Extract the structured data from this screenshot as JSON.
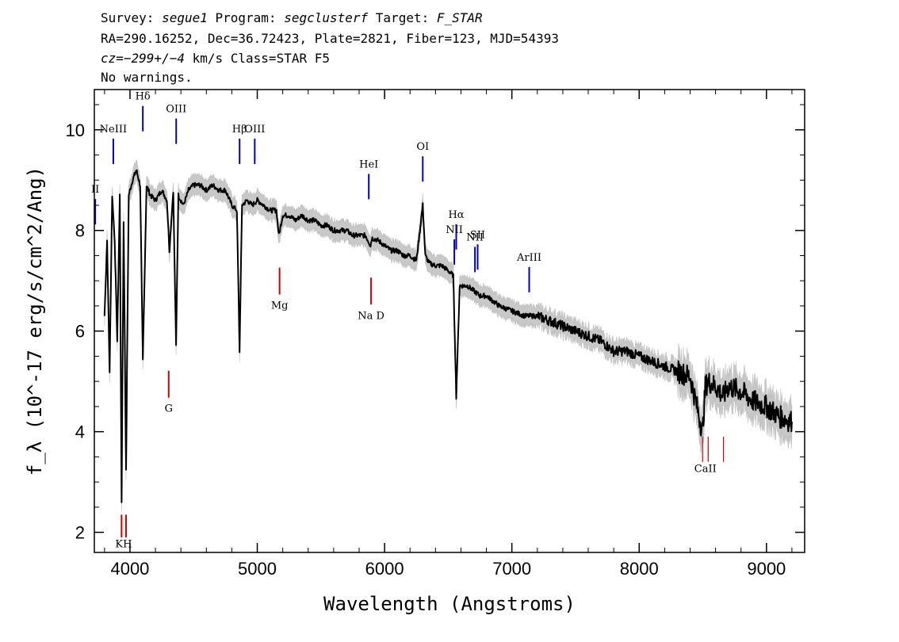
{
  "header": {
    "survey_label": "Survey: ",
    "survey_value": "segue1",
    "program_label": " Program: ",
    "program_value": "segclusterf",
    "target_label": " Target: ",
    "target_value": "F_STAR",
    "line2": "RA=290.16252, Dec=36.72423, Plate=2821, Fiber=123, MJD=54393",
    "cz_value": "cz=−299+/−4",
    "cz_rest": " km/s Class=STAR F5",
    "line4": "No warnings."
  },
  "chart_data": {
    "type": "line",
    "title": "",
    "xlabel": "Wavelength (Angstroms)",
    "ylabel": "f_λ (10^-17 erg/s/cm^2/Ang)",
    "xlim": [
      3720,
      9300
    ],
    "ylim": [
      1.6,
      10.8
    ],
    "xticks": [
      4000,
      5000,
      6000,
      7000,
      8000,
      9000
    ],
    "yticks": [
      2,
      4,
      6,
      8,
      10
    ],
    "xtick_labels": [
      "4000",
      "5000",
      "6000",
      "7000",
      "8000",
      "9000"
    ],
    "ytick_labels": [
      "2",
      "4",
      "6",
      "8",
      "10"
    ],
    "grid": false,
    "series": [
      {
        "color": "#000000",
        "x": [
          3800,
          3820,
          3840,
          3860,
          3880,
          3900,
          3920,
          3934,
          3950,
          3969,
          3990,
          4020,
          4050,
          4080,
          4101,
          4130,
          4160,
          4200,
          4250,
          4290,
          4310,
          4340,
          4362,
          4380,
          4420,
          4460,
          4500,
          4550,
          4600,
          4650,
          4700,
          4750,
          4800,
          4840,
          4861,
          4880,
          4920,
          4960,
          5000,
          5050,
          5100,
          5150,
          5170,
          5200,
          5250,
          5300,
          5350,
          5400,
          5450,
          5500,
          5550,
          5600,
          5650,
          5700,
          5750,
          5800,
          5850,
          5890,
          5900,
          5950,
          6000,
          6050,
          6100,
          6150,
          6200,
          6250,
          6300,
          6320,
          6350,
          6400,
          6450,
          6500,
          6540,
          6563,
          6590,
          6620,
          6650,
          6700,
          6750,
          6800,
          6900,
          7000,
          7100,
          7200,
          7300,
          7400,
          7500,
          7600,
          7700,
          7800,
          7900,
          8000,
          8100,
          8200,
          8300,
          8400,
          8498,
          8520,
          8542,
          8600,
          8662,
          8700,
          8800,
          8900,
          9000,
          9100,
          9200
        ],
        "values": [
          6.3,
          7.8,
          5.2,
          8.7,
          7.8,
          5.8,
          8.7,
          2.6,
          8.2,
          3.2,
          8.7,
          9.0,
          9.2,
          8.9,
          5.4,
          8.9,
          8.7,
          8.6,
          8.8,
          8.6,
          7.6,
          8.8,
          5.7,
          8.7,
          8.5,
          8.8,
          8.9,
          8.9,
          8.8,
          8.9,
          8.8,
          8.8,
          8.5,
          8.4,
          5.6,
          8.5,
          8.6,
          8.5,
          8.6,
          8.5,
          8.4,
          8.4,
          7.9,
          8.3,
          8.3,
          8.2,
          8.3,
          8.2,
          8.2,
          8.1,
          8.1,
          8.0,
          8.0,
          8.0,
          7.9,
          7.9,
          7.9,
          7.7,
          7.85,
          7.8,
          7.7,
          7.6,
          7.6,
          7.5,
          7.5,
          7.4,
          8.5,
          7.5,
          7.35,
          7.3,
          7.3,
          7.2,
          7.1,
          4.7,
          6.9,
          6.9,
          6.9,
          6.8,
          6.7,
          6.7,
          6.5,
          6.4,
          6.3,
          6.3,
          6.2,
          6.1,
          6.0,
          5.9,
          5.8,
          5.6,
          5.6,
          5.5,
          5.4,
          5.3,
          5.2,
          5.1,
          4.0,
          4.9,
          5.0,
          4.9,
          4.7,
          4.9,
          4.8,
          4.6,
          4.5,
          4.3,
          4.2
        ]
      }
    ],
    "annotations": [
      {
        "label": "KH",
        "x": 3950,
        "color": "#d00000",
        "y_label": 1.85
      },
      {
        "label": "G",
        "x": 4304,
        "color": "#d00000",
        "y_label": 4.55
      },
      {
        "label": "Mg",
        "x": 5175,
        "color": "#d00000",
        "y_label": 6.6
      },
      {
        "label": "Na D",
        "x": 5894,
        "color": "#d00000",
        "y_label": 6.4
      },
      {
        "label": "CaII",
        "x": 8500,
        "color": "#d00000",
        "y_label": 3.4
      },
      {
        "label": "NeIII",
        "x": 3869,
        "color": "#0000c0",
        "y_label": 9.95
      },
      {
        "label": "Hδ",
        "x": 4101,
        "color": "#0000c0",
        "y_label": 10.6
      },
      {
        "label": "OIII",
        "x": 4363,
        "color": "#0000c0",
        "y_label": 10.35
      },
      {
        "label": "Hβ",
        "x": 4861,
        "color": "#0000c0",
        "y_label": 9.95
      },
      {
        "label": "OIII",
        "x": 4980,
        "color": "#0000c0",
        "y_label": 9.95
      },
      {
        "label": "HeI",
        "x": 5876,
        "color": "#0000c0",
        "y_label": 9.25
      },
      {
        "label": "OI",
        "x": 6300,
        "color": "#0000c0",
        "y_label": 9.6
      },
      {
        "label": "NII",
        "x": 6548,
        "color": "#0000c0",
        "y_label": 7.95
      },
      {
        "label": "Hα",
        "x": 6563,
        "color": "#0000c0",
        "y_label": 8.25
      },
      {
        "label": "NII",
        "x": 6710,
        "color": "#0000c0",
        "y_label": 7.8
      },
      {
        "label": "SII",
        "x": 6731,
        "color": "#0000c0",
        "y_label": 7.85
      },
      {
        "label": "ArIII",
        "x": 7136,
        "color": "#0000c0",
        "y_label": 7.4
      },
      {
        "label": "II",
        "x": 3727,
        "color": "#0000c0",
        "y_label": 8.75
      }
    ]
  }
}
